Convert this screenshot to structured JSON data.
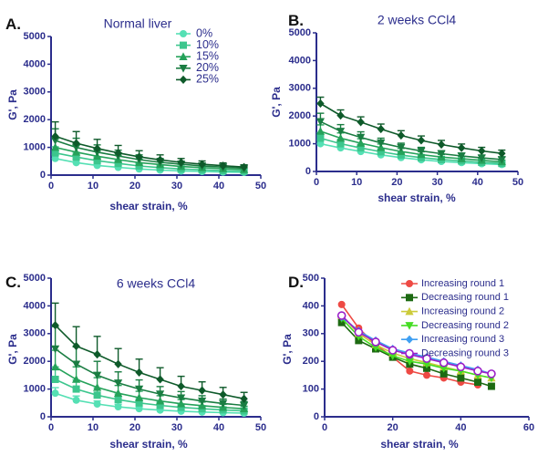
{
  "chart_data": [
    {
      "panel_label": "A.",
      "title": "Normal liver",
      "type": "line",
      "xlabel": "shear strain, %",
      "ylabel": "G', Pa",
      "xlim": [
        0,
        50
      ],
      "ylim": [
        0,
        5000
      ],
      "xticks": [
        0,
        10,
        20,
        30,
        40,
        50
      ],
      "yticks": [
        0,
        1000,
        2000,
        3000,
        4000,
        5000
      ],
      "legend_position": "top-right",
      "x": [
        1,
        6,
        11,
        16,
        21,
        26,
        31,
        36,
        41,
        46
      ],
      "series": [
        {
          "name": "0%",
          "marker": "circle",
          "color": "#55e0b4",
          "values": [
            600,
            450,
            350,
            280,
            220,
            180,
            150,
            130,
            110,
            100
          ],
          "errors": [
            150,
            110,
            80,
            60,
            50,
            40,
            35,
            30,
            25,
            20
          ]
        },
        {
          "name": "10%",
          "marker": "square",
          "color": "#3cc68d",
          "values": [
            800,
            650,
            520,
            420,
            330,
            270,
            220,
            190,
            160,
            140
          ],
          "errors": [
            220,
            170,
            130,
            100,
            80,
            60,
            50,
            40,
            35,
            30
          ]
        },
        {
          "name": "15%",
          "marker": "triangle-up",
          "color": "#25a25a",
          "values": [
            1000,
            830,
            680,
            560,
            450,
            380,
            310,
            270,
            230,
            200
          ],
          "errors": [
            300,
            240,
            190,
            150,
            120,
            100,
            80,
            70,
            60,
            50
          ]
        },
        {
          "name": "20%",
          "marker": "triangle-down",
          "color": "#1a7d42",
          "values": [
            1250,
            1000,
            830,
            690,
            560,
            460,
            390,
            330,
            290,
            250
          ],
          "errors": [
            420,
            330,
            260,
            210,
            170,
            140,
            110,
            90,
            80,
            70
          ]
        },
        {
          "name": "25%",
          "marker": "diamond",
          "color": "#0e5a2a",
          "values": [
            1400,
            1150,
            960,
            800,
            660,
            550,
            460,
            390,
            340,
            290
          ],
          "errors": [
            520,
            420,
            330,
            270,
            220,
            180,
            140,
            120,
            100,
            80
          ]
        }
      ]
    },
    {
      "panel_label": "B.",
      "title": "2 weeks CCl4",
      "type": "line",
      "xlabel": "shear strain, %",
      "ylabel": "G', Pa",
      "xlim": [
        0,
        50
      ],
      "ylim": [
        0,
        5000
      ],
      "xticks": [
        0,
        10,
        20,
        30,
        40,
        50
      ],
      "yticks": [
        0,
        1000,
        2000,
        3000,
        4000,
        5000
      ],
      "x": [
        1,
        6,
        11,
        16,
        21,
        26,
        31,
        36,
        41,
        46
      ],
      "series": [
        {
          "name": "0%",
          "marker": "circle",
          "color": "#55e0b4",
          "values": [
            1000,
            850,
            720,
            600,
            500,
            420,
            360,
            320,
            280,
            250
          ],
          "errors": [
            150,
            120,
            100,
            80,
            70,
            60,
            50,
            45,
            40,
            35
          ]
        },
        {
          "name": "10%",
          "marker": "square",
          "color": "#3cc68d",
          "values": [
            1200,
            1000,
            850,
            710,
            590,
            500,
            430,
            380,
            330,
            290
          ],
          "errors": [
            200,
            160,
            130,
            110,
            90,
            80,
            70,
            60,
            50,
            45
          ]
        },
        {
          "name": "15%",
          "marker": "triangle-up",
          "color": "#25a25a",
          "values": [
            1450,
            1200,
            1020,
            860,
            720,
            610,
            520,
            460,
            400,
            350
          ],
          "errors": [
            230,
            190,
            160,
            130,
            110,
            100,
            90,
            80,
            70,
            60
          ]
        },
        {
          "name": "20%",
          "marker": "triangle-down",
          "color": "#1a7d42",
          "values": [
            1800,
            1450,
            1230,
            1030,
            870,
            740,
            640,
            560,
            490,
            430
          ],
          "errors": [
            300,
            240,
            200,
            170,
            150,
            130,
            110,
            100,
            90,
            80
          ]
        },
        {
          "name": "25%",
          "marker": "diamond",
          "color": "#0e5a2a",
          "values": [
            2450,
            2020,
            1780,
            1530,
            1300,
            1120,
            970,
            850,
            740,
            650
          ],
          "errors": [
            230,
            200,
            190,
            180,
            170,
            160,
            150,
            140,
            130,
            120
          ]
        }
      ]
    },
    {
      "panel_label": "C.",
      "title": "6 weeks CCl4",
      "type": "line",
      "xlabel": "shear strain, %",
      "ylabel": "G', Pa",
      "xlim": [
        0,
        50
      ],
      "ylim": [
        0,
        5000
      ],
      "xticks": [
        0,
        10,
        20,
        30,
        40,
        50
      ],
      "yticks": [
        0,
        1000,
        2000,
        3000,
        4000,
        5000
      ],
      "x": [
        1,
        6,
        11,
        16,
        21,
        26,
        31,
        36,
        41,
        46
      ],
      "series": [
        {
          "name": "0%",
          "marker": "circle",
          "color": "#55e0b4",
          "values": [
            850,
            600,
            460,
            360,
            290,
            240,
            200,
            170,
            150,
            130
          ],
          "errors": [
            200,
            150,
            110,
            90,
            70,
            60,
            50,
            45,
            40,
            35
          ]
        },
        {
          "name": "10%",
          "marker": "square",
          "color": "#3cc68d",
          "values": [
            1350,
            1000,
            780,
            620,
            500,
            410,
            340,
            290,
            250,
            210
          ],
          "errors": [
            450,
            330,
            260,
            200,
            160,
            130,
            110,
            90,
            80,
            70
          ]
        },
        {
          "name": "15%",
          "marker": "triangle-up",
          "color": "#25a25a",
          "values": [
            1800,
            1350,
            1060,
            850,
            690,
            570,
            470,
            400,
            340,
            290
          ],
          "errors": [
            600,
            450,
            350,
            280,
            230,
            190,
            150,
            130,
            110,
            90
          ]
        },
        {
          "name": "20%",
          "marker": "triangle-down",
          "color": "#1a7d42",
          "values": [
            2450,
            1900,
            1500,
            1220,
            1000,
            820,
            680,
            570,
            480,
            410
          ],
          "errors": [
            800,
            620,
            500,
            400,
            330,
            270,
            230,
            190,
            160,
            140
          ]
        },
        {
          "name": "25%",
          "marker": "diamond",
          "color": "#0e5a2a",
          "values": [
            3300,
            2550,
            2250,
            1900,
            1600,
            1350,
            1100,
            950,
            800,
            650
          ],
          "errors": [
            800,
            700,
            650,
            560,
            480,
            420,
            360,
            310,
            260,
            230
          ]
        }
      ]
    },
    {
      "panel_label": "D.",
      "type": "line",
      "xlabel": "shear strain, %",
      "ylabel": "G', Pa",
      "xlim": [
        0,
        60
      ],
      "ylim": [
        0,
        500
      ],
      "xticks": [
        0,
        20,
        40,
        60
      ],
      "yticks": [
        0,
        100,
        200,
        300,
        400,
        500
      ],
      "legend_position": "top-right",
      "x": [
        5,
        10,
        15,
        20,
        25,
        30,
        35,
        40,
        45,
        49
      ],
      "series": [
        {
          "name": "Increasing round 1",
          "marker": "circle",
          "color": "#ee4a44",
          "values": [
            405,
            320,
            260,
            215,
            165,
            150,
            140,
            125,
            115,
            null
          ]
        },
        {
          "name": "Decreasing round 1",
          "marker": "square",
          "color": "#1d6a12",
          "values": [
            340,
            275,
            245,
            215,
            190,
            175,
            155,
            140,
            125,
            110
          ]
        },
        {
          "name": "Increasing round 2",
          "marker": "triangle-up",
          "color": "#cccb3b",
          "values": [
            365,
            300,
            260,
            230,
            210,
            195,
            180,
            165,
            150,
            140
          ]
        },
        {
          "name": "Decreasing round 2",
          "marker": "triangle-down",
          "color": "#46dd24",
          "values": [
            355,
            290,
            250,
            220,
            200,
            190,
            175,
            165,
            150,
            140
          ]
        },
        {
          "name": "Increasing round 3",
          "marker": "diamond",
          "color": "#3f9ff2",
          "values": [
            360,
            310,
            275,
            245,
            230,
            215,
            200,
            185,
            170,
            155
          ]
        },
        {
          "name": "Decreasing round 3",
          "marker": "open-circle",
          "color": "#9b1fc8",
          "values": [
            365,
            305,
            270,
            240,
            225,
            210,
            195,
            180,
            165,
            155
          ]
        }
      ]
    }
  ]
}
